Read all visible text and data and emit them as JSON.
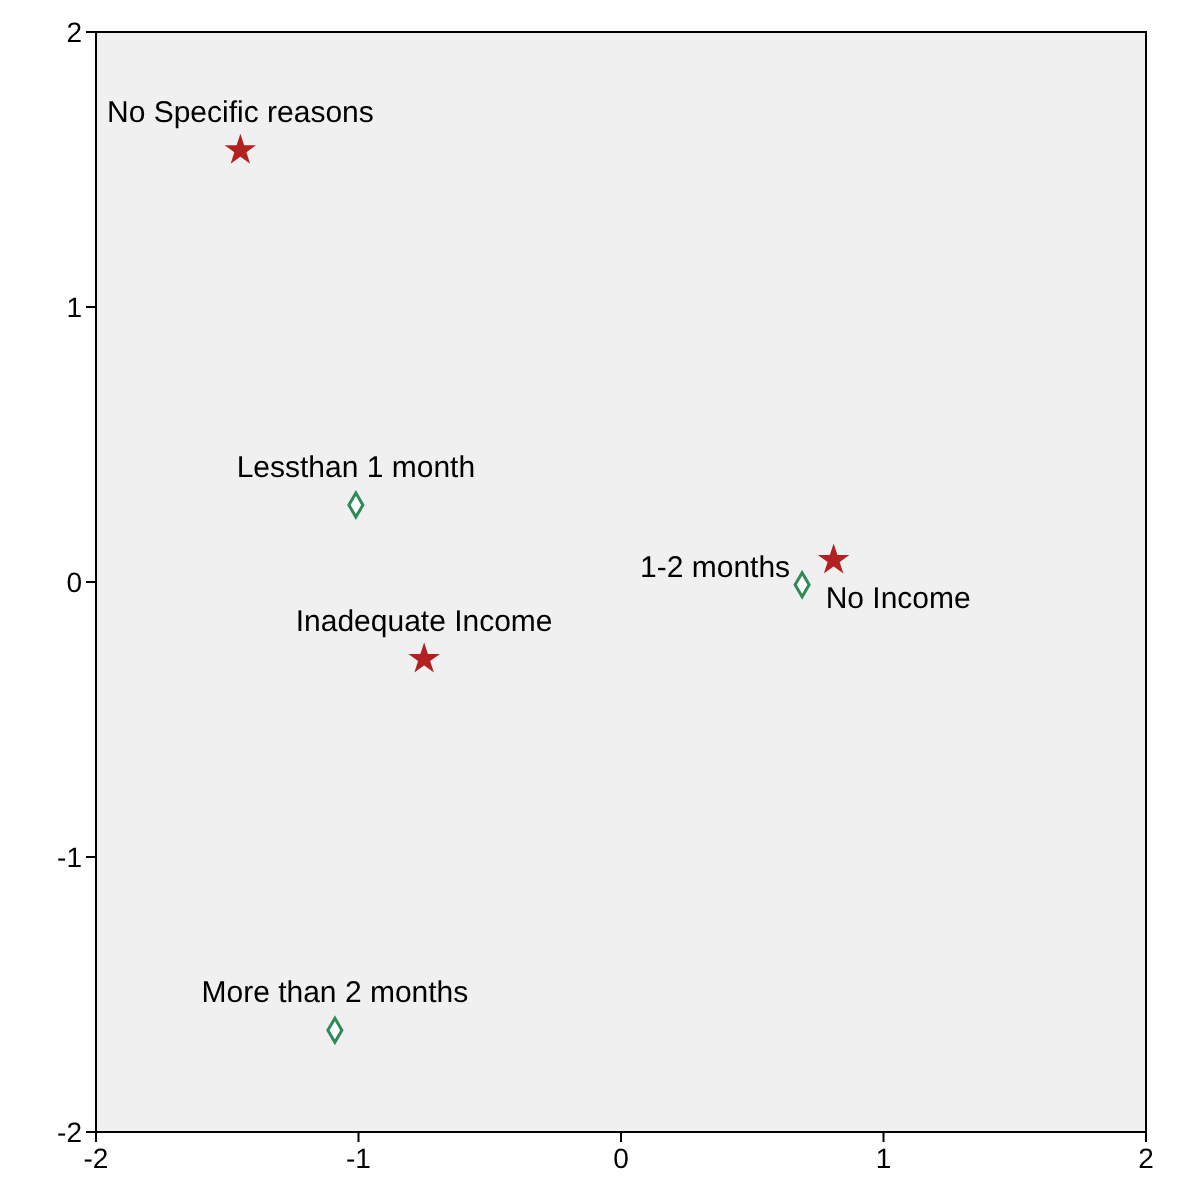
{
  "chart_data": {
    "type": "scatter",
    "xlim": [
      -2,
      2
    ],
    "ylim": [
      -2,
      2
    ],
    "xticks": [
      -2,
      -1,
      0,
      1,
      2
    ],
    "yticks": [
      -2,
      -1,
      0,
      1,
      2
    ],
    "grid": false,
    "series": [
      {
        "color": "#b22222",
        "marker": "star",
        "x": [
          -1.45,
          -0.75,
          0.81
        ],
        "values": [
          1.57,
          -0.28,
          0.08
        ]
      },
      {
        "color": "#2e8b57",
        "marker": "diamond",
        "x": [
          -1.01,
          0.69,
          -1.09
        ],
        "values": [
          0.28,
          -0.01,
          -1.63
        ]
      }
    ],
    "annotations": [
      {
        "text": "No Specific reasons",
        "x": -1.45,
        "y": 1.57
      },
      {
        "text": "Lessthan 1 month",
        "x": -1.01,
        "y": 0.28
      },
      {
        "text": "Inadequate Income",
        "x": -0.75,
        "y": -0.28
      },
      {
        "text": "1-2 months",
        "x": 0.69,
        "y": -0.01
      },
      {
        "text": "No Income",
        "x": 0.81,
        "y": 0.08
      },
      {
        "text": "More than 2 months",
        "x": -1.09,
        "y": -1.63
      }
    ]
  }
}
